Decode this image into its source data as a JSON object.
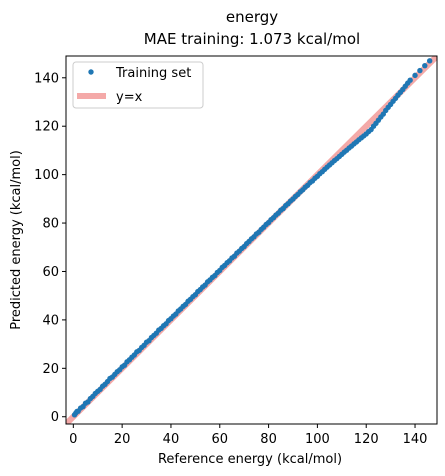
{
  "chart_data": {
    "type": "scatter",
    "title": "energy",
    "subtitle": "MAE training: 1.073 kcal/mol",
    "xlabel": "Reference energy (kcal/mol)",
    "ylabel": "Predicted energy (kcal/mol)",
    "xlim": [
      -3,
      149
    ],
    "ylim": [
      -3,
      149
    ],
    "xticks": [
      0,
      20,
      40,
      60,
      80,
      100,
      120,
      140
    ],
    "yticks": [
      0,
      20,
      40,
      60,
      80,
      100,
      120,
      140
    ],
    "grid": false,
    "legend": {
      "placement": "top-left",
      "entries": [
        "Training set",
        "y=x"
      ]
    },
    "series": [
      {
        "name": "Training set",
        "color": "#1f77b4",
        "points": [
          [
            0.5,
            0.8
          ],
          [
            1.0,
            1.5
          ],
          [
            1.5,
            2.2
          ],
          [
            2.0,
            2.3
          ],
          [
            3.0,
            3.6
          ],
          [
            4.0,
            4.2
          ],
          [
            5.0,
            5.6
          ],
          [
            6.0,
            6.1
          ],
          [
            7.0,
            7.5
          ],
          [
            8.0,
            8.4
          ],
          [
            9.0,
            9.6
          ],
          [
            10.0,
            10.5
          ],
          [
            11.0,
            11.3
          ],
          [
            12.0,
            12.6
          ],
          [
            13.0,
            13.4
          ],
          [
            14.0,
            14.5
          ],
          [
            15.0,
            15.8
          ],
          [
            16.0,
            16.4
          ],
          [
            17.0,
            17.5
          ],
          [
            18.0,
            18.6
          ],
          [
            19.0,
            19.4
          ],
          [
            20.0,
            20.6
          ],
          [
            21.0,
            21.3
          ],
          [
            22.0,
            22.7
          ],
          [
            23.0,
            23.5
          ],
          [
            24.0,
            24.6
          ],
          [
            25.0,
            25.5
          ],
          [
            26.0,
            26.8
          ],
          [
            27.0,
            27.4
          ],
          [
            28.0,
            28.6
          ],
          [
            29.0,
            29.5
          ],
          [
            30.0,
            30.8
          ],
          [
            31.0,
            31.4
          ],
          [
            32.0,
            32.7
          ],
          [
            33.0,
            33.6
          ],
          [
            34.0,
            34.5
          ],
          [
            35.0,
            35.8
          ],
          [
            36.0,
            36.5
          ],
          [
            37.0,
            37.6
          ],
          [
            38.0,
            38.4
          ],
          [
            39.0,
            39.7
          ],
          [
            40.0,
            40.5
          ],
          [
            41.0,
            41.6
          ],
          [
            42.0,
            42.4
          ],
          [
            43.0,
            43.7
          ],
          [
            44.0,
            44.5
          ],
          [
            45.0,
            45.6
          ],
          [
            46.0,
            46.4
          ],
          [
            47.0,
            47.7
          ],
          [
            48.0,
            48.5
          ],
          [
            49.0,
            49.6
          ],
          [
            50.0,
            50.4
          ],
          [
            51.0,
            51.7
          ],
          [
            52.0,
            52.5
          ],
          [
            53.0,
            53.6
          ],
          [
            54.0,
            54.4
          ],
          [
            55.0,
            55.7
          ],
          [
            56.0,
            56.5
          ],
          [
            57.0,
            57.6
          ],
          [
            58.0,
            58.3
          ],
          [
            59.0,
            59.6
          ],
          [
            60.0,
            60.4
          ],
          [
            61.0,
            61.7
          ],
          [
            62.0,
            62.5
          ],
          [
            63.0,
            63.6
          ],
          [
            64.0,
            64.4
          ],
          [
            65.0,
            65.6
          ],
          [
            66.0,
            66.3
          ],
          [
            67.0,
            67.6
          ],
          [
            68.0,
            68.4
          ],
          [
            69.0,
            69.5
          ],
          [
            70.0,
            70.3
          ],
          [
            71.0,
            71.5
          ],
          [
            72.0,
            72.4
          ],
          [
            73.0,
            73.5
          ],
          [
            74.0,
            74.3
          ],
          [
            75.0,
            75.5
          ],
          [
            76.0,
            76.2
          ],
          [
            77.0,
            77.4
          ],
          [
            78.0,
            78.3
          ],
          [
            79.0,
            79.4
          ],
          [
            80.0,
            80.2
          ],
          [
            81.0,
            81.4
          ],
          [
            82.0,
            82.2
          ],
          [
            83.0,
            83.3
          ],
          [
            84.0,
            84.1
          ],
          [
            85.0,
            85.3
          ],
          [
            86.0,
            86.0
          ],
          [
            87.0,
            87.2
          ],
          [
            88.0,
            88.0
          ],
          [
            89.0,
            89.1
          ],
          [
            90.0,
            89.9
          ],
          [
            91.0,
            91.0
          ],
          [
            92.0,
            91.8
          ],
          [
            93.0,
            92.9
          ],
          [
            94.0,
            93.7
          ],
          [
            95.0,
            94.8
          ],
          [
            96.0,
            95.6
          ],
          [
            97.0,
            96.7
          ],
          [
            98.0,
            97.4
          ],
          [
            99.0,
            98.5
          ],
          [
            100.0,
            99.3
          ],
          [
            101.0,
            100.4
          ],
          [
            102.0,
            101.2
          ],
          [
            103.0,
            102.2
          ],
          [
            104.0,
            103.1
          ],
          [
            105.0,
            104.0
          ],
          [
            106.0,
            104.9
          ],
          [
            107.0,
            105.8
          ],
          [
            108.0,
            106.6
          ],
          [
            109.0,
            107.5
          ],
          [
            110.0,
            108.4
          ],
          [
            111.0,
            109.3
          ],
          [
            112.0,
            110.1
          ],
          [
            113.0,
            111.0
          ],
          [
            114.0,
            111.8
          ],
          [
            115.0,
            112.7
          ],
          [
            116.0,
            113.5
          ],
          [
            117.0,
            114.4
          ],
          [
            118.0,
            115.2
          ],
          [
            119.0,
            116.0
          ],
          [
            120.0,
            116.8
          ],
          [
            121.0,
            117.8
          ],
          [
            122.0,
            118.6
          ],
          [
            123.0,
            120.0
          ],
          [
            124.0,
            121.2
          ],
          [
            125.0,
            122.5
          ],
          [
            126.0,
            123.8
          ],
          [
            127.0,
            125.0
          ],
          [
            128.0,
            126.5
          ],
          [
            129.0,
            127.8
          ],
          [
            130.0,
            129.0
          ],
          [
            131.0,
            130.3
          ],
          [
            132.0,
            131.5
          ],
          [
            133.0,
            132.8
          ],
          [
            134.0,
            134.0
          ],
          [
            135.0,
            135.2
          ],
          [
            136.0,
            136.5
          ],
          [
            137.0,
            137.8
          ],
          [
            138.0,
            139.0
          ],
          [
            140.0,
            141.0
          ],
          [
            142.0,
            143.0
          ],
          [
            144.0,
            145.0
          ],
          [
            146.0,
            147.0
          ]
        ]
      },
      {
        "name": "y=x",
        "color": "#f4a9a8",
        "points": [
          [
            -3,
            -3
          ],
          [
            149,
            149
          ]
        ]
      }
    ]
  }
}
